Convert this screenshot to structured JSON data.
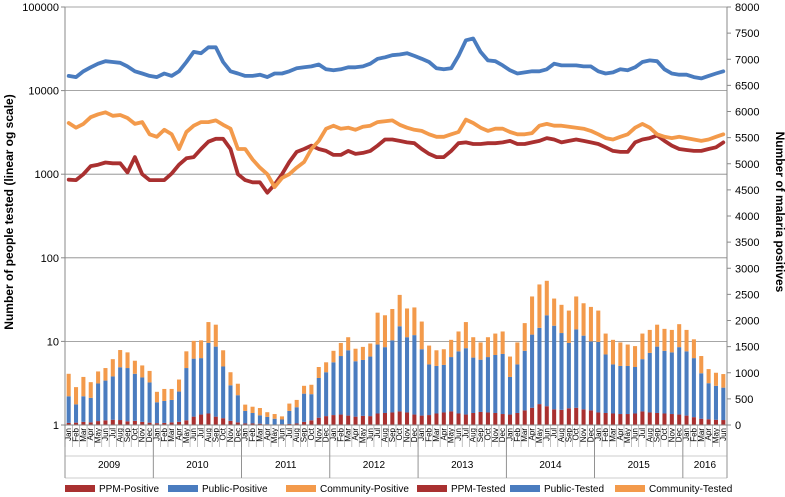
{
  "chart_data": {
    "type": "bar+line",
    "title": "",
    "ylabel_left": "Number of people tested (linear og scale)",
    "ylabel_right": "Number of malaria positives",
    "left_axis": {
      "scale": "log",
      "min": 1,
      "max": 100000,
      "ticks": [
        "1",
        "10",
        "100",
        "1000",
        "10000",
        "100000"
      ]
    },
    "right_axis": {
      "scale": "linear",
      "min": 0,
      "max": 8000,
      "ticks": [
        "0",
        "500",
        "1000",
        "1500",
        "2000",
        "2500",
        "3000",
        "3500",
        "4000",
        "4500",
        "5000",
        "5500",
        "6000",
        "6500",
        "7000",
        "7500",
        "8000"
      ]
    },
    "month_labels": [
      "Jan",
      "Feb",
      "Mar",
      "Apr",
      "May",
      "Jun",
      "Jul",
      "Aug",
      "Sep",
      "Oct",
      "Nov",
      "Dec"
    ],
    "years": [
      {
        "label": "2009",
        "months": 12
      },
      {
        "label": "2010",
        "months": 12
      },
      {
        "label": "2011",
        "months": 12
      },
      {
        "label": "2012",
        "months": 12
      },
      {
        "label": "2013",
        "months": 12
      },
      {
        "label": "2014",
        "months": 12
      },
      {
        "label": "2015",
        "months": 12
      },
      {
        "label": "2016",
        "months": 6
      }
    ],
    "stacked_bar_series": [
      {
        "name": "PPM-Positive",
        "color": "#A93030",
        "values": [
          40,
          45,
          60,
          50,
          75,
          90,
          100,
          95,
          70,
          80,
          60,
          45,
          35,
          40,
          50,
          60,
          90,
          160,
          200,
          220,
          160,
          130,
          80,
          50,
          30,
          30,
          25,
          15,
          10,
          15,
          20,
          30,
          60,
          90,
          140,
          170,
          190,
          200,
          180,
          160,
          175,
          170,
          220,
          230,
          240,
          260,
          240,
          200,
          180,
          190,
          220,
          240,
          260,
          220,
          200,
          230,
          250,
          240,
          230,
          210,
          200,
          230,
          280,
          330,
          400,
          360,
          300,
          290,
          320,
          330,
          300,
          280,
          240,
          230,
          220,
          210,
          210,
          220,
          260,
          240,
          230,
          220,
          210,
          200,
          180,
          150,
          120,
          110,
          100,
          95
        ]
      },
      {
        "name": "Public-Positive",
        "color": "#4A7CBF",
        "values": [
          510,
          350,
          490,
          470,
          720,
          760,
          830,
          1010,
          1020,
          900,
          850,
          770,
          400,
          420,
          430,
          580,
          1000,
          1110,
          1080,
          1350,
          1340,
          990,
          680,
          520,
          240,
          200,
          160,
          140,
          110,
          90,
          250,
          310,
          540,
          500,
          760,
          840,
          1010,
          1120,
          1250,
          1060,
          1070,
          1140,
          1320,
          1260,
          1380,
          1630,
          1440,
          1520,
          1270,
          970,
          910,
          910,
          1040,
          1190,
          1270,
          1060,
          1000,
          1060,
          1110,
          1150,
          720,
          930,
          1140,
          1400,
          1460,
          1740,
          1600,
          1470,
          1250,
          1500,
          1410,
          1320,
          1350,
          1120,
          940,
          920,
          920,
          890,
          1000,
          1140,
          1270,
          1200,
          1180,
          1290,
          1230,
          1130,
          870,
          690,
          650,
          620
        ]
      },
      {
        "name": "Community-Positive",
        "color": "#F39A4B",
        "values": [
          430,
          330,
          370,
          300,
          230,
          240,
          330,
          330,
          300,
          250,
          230,
          220,
          200,
          230,
          210,
          230,
          320,
          340,
          340,
          400,
          420,
          310,
          250,
          220,
          120,
          120,
          140,
          90,
          90,
          60,
          140,
          140,
          150,
          180,
          210,
          190,
          220,
          250,
          250,
          240,
          250,
          250,
          610,
          610,
          600,
          600,
          550,
          530,
          530,
          360,
          300,
          300,
          330,
          380,
          500,
          390,
          330,
          380,
          410,
          430,
          390,
          420,
          530,
          730,
          830,
          660,
          520,
          540,
          620,
          630,
          620,
          660,
          600,
          400,
          470,
          450,
          410,
          400,
          490,
          440,
          420,
          420,
          430,
          440,
          410,
          360,
          330,
          270,
          250,
          260
        ]
      }
    ],
    "line_series": [
      {
        "name": "PPM-Tested",
        "color": "#A93030",
        "values": [
          860,
          850,
          1000,
          1250,
          1300,
          1380,
          1350,
          1350,
          1050,
          1600,
          1000,
          850,
          850,
          850,
          1020,
          1300,
          1550,
          1600,
          2000,
          2450,
          2650,
          2650,
          2000,
          1000,
          850,
          800,
          800,
          600,
          750,
          1000,
          1400,
          1850,
          2000,
          2200,
          2000,
          1900,
          1700,
          1700,
          1900,
          1750,
          1800,
          1900,
          2200,
          2600,
          2600,
          2500,
          2400,
          2350,
          2000,
          1750,
          1600,
          1600,
          1900,
          2350,
          2400,
          2300,
          2300,
          2350,
          2350,
          2400,
          2500,
          2300,
          2300,
          2400,
          2500,
          2700,
          2600,
          2400,
          2500,
          2600,
          2500,
          2400,
          2300,
          2100,
          1900,
          1850,
          1850,
          2400,
          2600,
          2700,
          2900,
          2500,
          2200,
          2000,
          1950,
          1900,
          1900,
          2000,
          2100,
          2400
        ]
      },
      {
        "name": "Public-Tested",
        "color": "#4A7CBF",
        "values": [
          15000,
          14500,
          17000,
          19000,
          21000,
          22500,
          22000,
          21500,
          19500,
          17000,
          16000,
          15000,
          14500,
          16000,
          15000,
          17000,
          22000,
          29000,
          28000,
          33000,
          33000,
          22000,
          17000,
          16000,
          15000,
          15000,
          15500,
          14500,
          16000,
          16000,
          17000,
          18500,
          19000,
          19500,
          20500,
          18000,
          17500,
          18000,
          19000,
          19000,
          19500,
          21000,
          24000,
          25000,
          26500,
          27000,
          28000,
          26000,
          24000,
          22000,
          18500,
          18000,
          18500,
          26000,
          40000,
          42000,
          29000,
          23000,
          22500,
          20000,
          17500,
          16000,
          16500,
          17000,
          17000,
          18000,
          21000,
          20000,
          20000,
          20000,
          19500,
          19500,
          17000,
          16000,
          16500,
          18000,
          17500,
          19000,
          22000,
          23000,
          22500,
          18000,
          16000,
          15500,
          15500,
          14500,
          14000,
          15000,
          16000,
          17000
        ]
      },
      {
        "name": "Community-Tested",
        "color": "#F39A4B",
        "values": [
          4100,
          3600,
          4000,
          4800,
          5200,
          5500,
          5000,
          5100,
          4700,
          4000,
          4200,
          3000,
          2800,
          3400,
          3000,
          2000,
          3200,
          3800,
          4200,
          4200,
          4400,
          3900,
          3500,
          2000,
          2000,
          1500,
          1200,
          1000,
          700,
          900,
          1000,
          1200,
          1400,
          2000,
          2500,
          3500,
          3800,
          3500,
          3600,
          3400,
          3700,
          3800,
          4200,
          4300,
          4400,
          3900,
          3600,
          3400,
          3300,
          3000,
          2800,
          2800,
          3000,
          3200,
          4500,
          4100,
          3600,
          3300,
          3500,
          3500,
          3200,
          3000,
          3000,
          3100,
          3800,
          4000,
          3800,
          3800,
          3700,
          3600,
          3500,
          3300,
          3000,
          2700,
          2600,
          2800,
          3000,
          3600,
          4000,
          3600,
          3000,
          2800,
          2700,
          2800,
          2700,
          2600,
          2500,
          2600,
          2800,
          3000
        ]
      }
    ],
    "legend": [
      "PPM-Positive",
      "Public-Positive",
      "Community-Positive",
      "PPM-Tested",
      "Public-Tested",
      "Community-Tested"
    ],
    "legend_position": "bottom",
    "grid": true
  }
}
